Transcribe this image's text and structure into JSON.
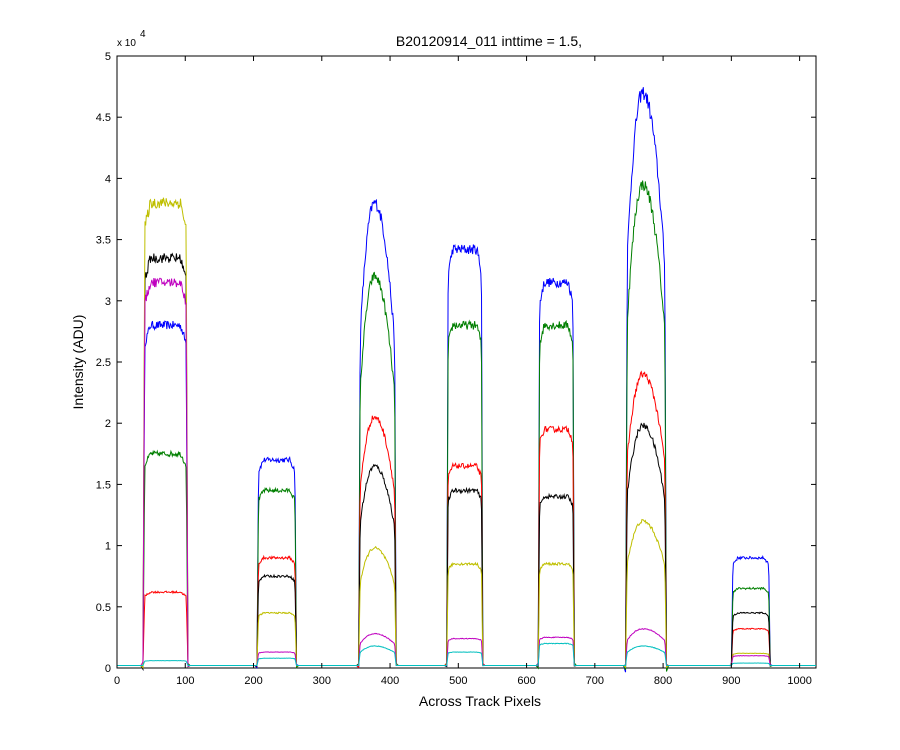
{
  "chart_data": {
    "type": "line",
    "title": "B20120914_011 inttime = 1.5,",
    "xlabel": "Across Track Pixels",
    "ylabel": "Intensity (ADU)",
    "y_exponent_label": "x 10",
    "y_exponent_power": "4",
    "xlim": [
      0,
      1024
    ],
    "ylim": [
      0,
      50000
    ],
    "x_ticks": [
      0,
      100,
      200,
      300,
      400,
      500,
      600,
      700,
      800,
      900,
      1000
    ],
    "y_ticks": [
      0,
      5000,
      10000,
      15000,
      20000,
      25000,
      30000,
      35000,
      40000,
      45000,
      50000
    ],
    "x_tick_labels": [
      "0",
      "100",
      "200",
      "300",
      "400",
      "500",
      "600",
      "700",
      "800",
      "900",
      "1000"
    ],
    "y_tick_labels": [
      "0",
      "0.5",
      "1",
      "1.5",
      "2",
      "2.5",
      "3",
      "3.5",
      "4",
      "4.5",
      "5"
    ],
    "grid": false,
    "baseline": 200,
    "segments": [
      {
        "x_start": 38,
        "x_end": 104
      },
      {
        "x_start": 205,
        "x_end": 263
      },
      {
        "x_start": 354,
        "x_end": 409
      },
      {
        "x_start": 483,
        "x_end": 536
      },
      {
        "x_start": 617,
        "x_end": 670
      },
      {
        "x_start": 745,
        "x_end": 805
      },
      {
        "x_start": 900,
        "x_end": 957
      }
    ],
    "series": [
      {
        "color": "#0000ff",
        "peaks": [
          28000,
          17000,
          38000,
          34200,
          31500,
          47000,
          9000
        ],
        "shape": [
          "flat",
          "flat",
          "peak",
          "flat",
          "flat",
          "peak",
          "flat"
        ]
      },
      {
        "color": "#007f00",
        "peaks": [
          17500,
          14500,
          32000,
          28000,
          28000,
          39500,
          6500
        ],
        "shape": [
          "flat",
          "flat",
          "peak",
          "flat",
          "flat",
          "peak",
          "flat"
        ]
      },
      {
        "color": "#ff0000",
        "peaks": [
          6200,
          9000,
          20500,
          16500,
          19500,
          24000,
          3200
        ],
        "shape": [
          "flat",
          "flat",
          "peak",
          "flat",
          "flat",
          "peak",
          "flat"
        ]
      },
      {
        "color": "#000000",
        "peaks": [
          33500,
          7500,
          16500,
          14500,
          14000,
          19800,
          4500
        ],
        "shape": [
          "flat",
          "flat",
          "peak",
          "flat",
          "flat",
          "peak",
          "flat"
        ]
      },
      {
        "color": "#bfbf00",
        "peaks": [
          38000,
          4500,
          9800,
          8500,
          8500,
          12000,
          1200
        ],
        "shape": [
          "flat",
          "flat",
          "peak",
          "flat",
          "flat",
          "peak",
          "flat"
        ]
      },
      {
        "color": "#bf00bf",
        "peaks": [
          31500,
          1300,
          2800,
          2400,
          2500,
          3200,
          1000
        ],
        "shape": [
          "flat",
          "flat",
          "peak",
          "flat",
          "flat",
          "peak",
          "flat"
        ]
      },
      {
        "color": "#00bfbf",
        "peaks": [
          600,
          800,
          1800,
          1300,
          2000,
          1800,
          400
        ],
        "shape": [
          "flat",
          "flat",
          "peak",
          "flat",
          "flat",
          "peak",
          "flat"
        ]
      }
    ]
  }
}
